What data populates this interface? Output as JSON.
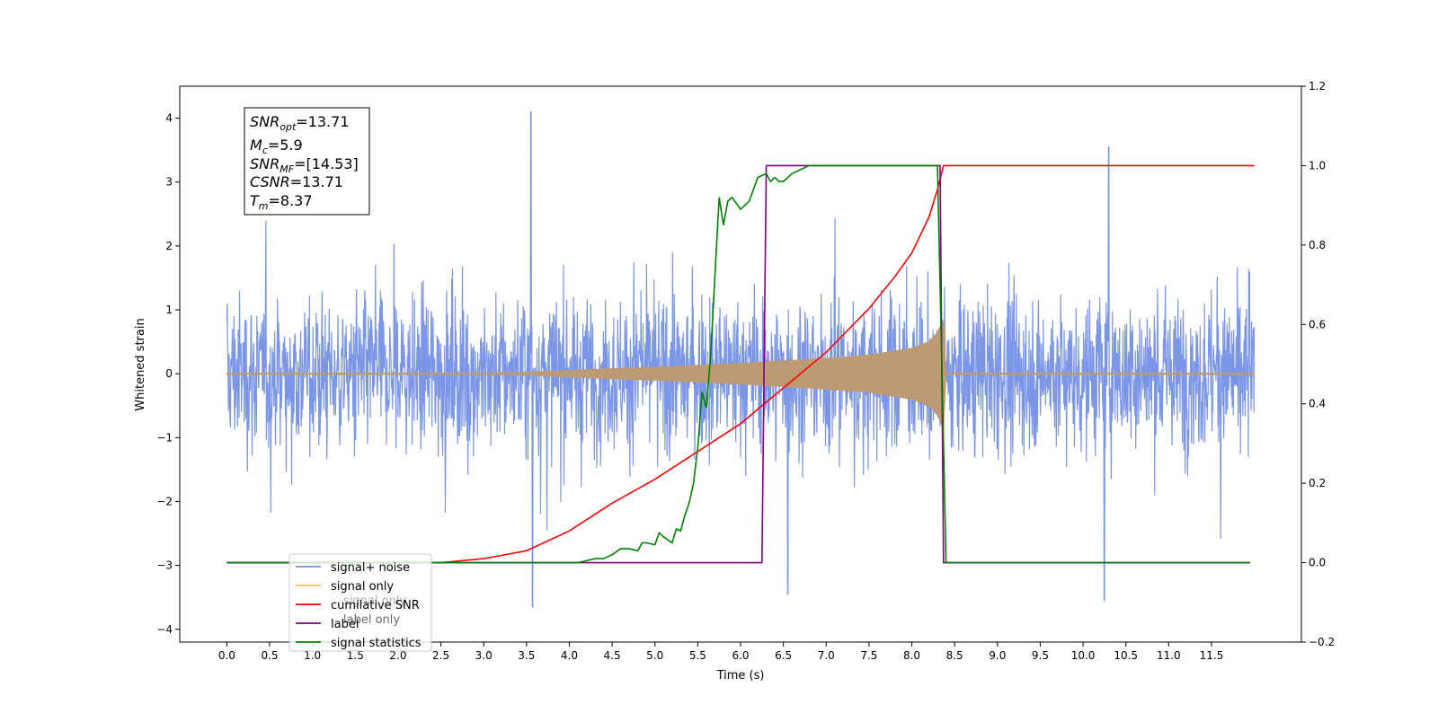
{
  "chart_data": {
    "type": "line",
    "xlabel": "Time (s)",
    "ylabel": "Whitened strain",
    "xlim": [
      -0.55,
      12.55
    ],
    "ylim": [
      -4.2,
      4.5
    ],
    "ylim_right": [
      -0.2,
      1.2
    ],
    "grid": false,
    "legend_position": "lower-left",
    "x_ticks": [
      "0.0",
      "0.5",
      "1.0",
      "1.5",
      "2.0",
      "2.5",
      "3.0",
      "3.5",
      "4.0",
      "4.5",
      "5.0",
      "5.5",
      "6.0",
      "6.5",
      "7.0",
      "7.5",
      "8.0",
      "8.5",
      "9.0",
      "9.5",
      "10.0",
      "10.5",
      "11.0",
      "11.5"
    ],
    "y_ticks_left": [
      "4",
      "3",
      "2",
      "1",
      "0",
      "−1",
      "−2",
      "−3",
      "−4"
    ],
    "y_ticks_right": [
      "1.2",
      "1.0",
      "0.8",
      "0.6",
      "0.4",
      "0.2",
      "0.0",
      "−0.2"
    ],
    "info_box": [
      {
        "base": "SNR",
        "sub": "opt",
        "rest": "=13.71"
      },
      {
        "base": "M",
        "sub": "c",
        "rest": "=5.9"
      },
      {
        "base": "SNR",
        "sub": "MF",
        "rest": "=[14.53]"
      },
      {
        "base": "CSNR",
        "sub": "",
        "rest": "=13.71"
      },
      {
        "base": "T",
        "sub": "m",
        "rest": "=8.37"
      }
    ],
    "legend": [
      "signal+ noise",
      "signal only",
      "cumilative SNR",
      "label",
      "signal statistics"
    ],
    "legend_hidden_text": [
      "label only",
      "signal only"
    ],
    "series": [
      {
        "name": "signal+ noise",
        "axis": "left",
        "color": "#7590e6",
        "description_values": {
          "x_start": 0.0,
          "x_end": 12.0,
          "typical_min": -2.5,
          "typical_max": 2.5,
          "outlier_max": 4.1,
          "outlier_min": -3.65
        }
      },
      {
        "name": "signal only",
        "axis": "left",
        "color": "#bb9a74",
        "envelope": {
          "x": [
            0.0,
            3.0,
            3.5,
            4.0,
            4.5,
            5.0,
            5.5,
            6.0,
            6.5,
            7.0,
            7.5,
            8.0,
            8.2,
            8.3,
            8.37,
            8.4,
            12.0
          ],
          "amp": [
            0.01,
            0.01,
            0.02,
            0.05,
            0.08,
            0.1,
            0.13,
            0.16,
            0.2,
            0.24,
            0.29,
            0.4,
            0.5,
            0.65,
            0.85,
            0.01,
            0.01
          ]
        }
      },
      {
        "name": "cumilative SNR",
        "axis": "right",
        "color": "#ff0000",
        "x": [
          0.0,
          2.5,
          3.0,
          3.5,
          4.0,
          4.5,
          5.0,
          5.5,
          6.0,
          6.5,
          7.0,
          7.5,
          7.8,
          8.0,
          8.2,
          8.3,
          8.37,
          8.4,
          12.0
        ],
        "values": [
          0.0,
          0.0,
          0.01,
          0.03,
          0.08,
          0.15,
          0.21,
          0.28,
          0.35,
          0.44,
          0.53,
          0.64,
          0.72,
          0.78,
          0.87,
          0.94,
          1.0,
          1.0,
          1.0
        ]
      },
      {
        "name": "label",
        "axis": "right",
        "color": "#800080",
        "x": [
          0.0,
          6.25,
          6.3,
          8.33,
          8.37,
          11.95
        ],
        "values": [
          0.0,
          0.0,
          1.0,
          1.0,
          0.0,
          0.0
        ]
      },
      {
        "name": "signal statistics",
        "axis": "right",
        "color": "#008000",
        "x": [
          0.0,
          4.1,
          4.2,
          4.3,
          4.4,
          4.5,
          4.6,
          4.7,
          4.8,
          4.85,
          4.9,
          5.0,
          5.05,
          5.1,
          5.2,
          5.25,
          5.3,
          5.35,
          5.4,
          5.45,
          5.5,
          5.55,
          5.6,
          5.65,
          5.7,
          5.75,
          5.8,
          5.85,
          5.9,
          6.0,
          6.1,
          6.2,
          6.3,
          6.35,
          6.4,
          6.45,
          6.5,
          6.6,
          6.7,
          6.8,
          6.9,
          7.0,
          8.3,
          8.35,
          8.4,
          8.45,
          8.5,
          11.95
        ],
        "values": [
          0.0,
          0.0,
          0.005,
          0.01,
          0.01,
          0.02,
          0.035,
          0.035,
          0.03,
          0.05,
          0.05,
          0.045,
          0.075,
          0.065,
          0.05,
          0.085,
          0.08,
          0.12,
          0.15,
          0.2,
          0.29,
          0.43,
          0.39,
          0.52,
          0.72,
          0.92,
          0.85,
          0.91,
          0.92,
          0.89,
          0.91,
          0.97,
          0.98,
          0.96,
          0.97,
          0.96,
          0.96,
          0.98,
          0.99,
          1.0,
          1.0,
          1.0,
          1.0,
          0.5,
          0.0,
          0.0,
          0.0,
          0.0
        ]
      }
    ]
  }
}
